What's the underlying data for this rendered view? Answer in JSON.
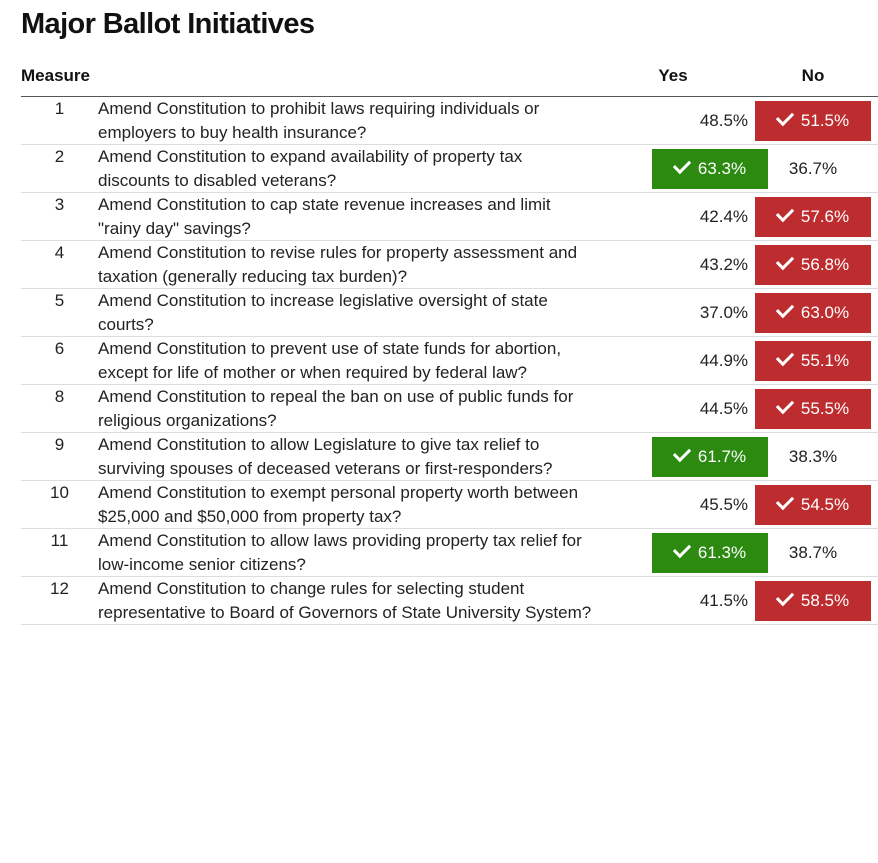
{
  "title": "Major Ballot Initiatives",
  "columns": {
    "measure": "Measure",
    "yes": "Yes",
    "no": "No"
  },
  "colors": {
    "yes_winner": "#2b8a0f",
    "no_winner": "#bd2c2f"
  },
  "rows": [
    {
      "number": "1",
      "description": "Amend Constitution to prohibit laws requiring individuals or employers to buy health insurance?",
      "yes": "48.5%",
      "no": "51.5%",
      "winner": "no"
    },
    {
      "number": "2",
      "description": "Amend Constitution to expand availability of property tax discounts to disabled veterans?",
      "yes": "63.3%",
      "no": "36.7%",
      "winner": "yes"
    },
    {
      "number": "3",
      "description": "Amend Constitution to cap state revenue increases and limit \"rainy day\" savings?",
      "yes": "42.4%",
      "no": "57.6%",
      "winner": "no"
    },
    {
      "number": "4",
      "description": "Amend Constitution to revise rules for property assessment and taxation (generally reducing tax burden)?",
      "yes": "43.2%",
      "no": "56.8%",
      "winner": "no"
    },
    {
      "number": "5",
      "description": "Amend Constitution to increase legislative oversight of state courts?",
      "yes": "37.0%",
      "no": "63.0%",
      "winner": "no"
    },
    {
      "number": "6",
      "description": "Amend Constitution to prevent use of state funds for abortion, except for life of mother or when required by federal law?",
      "yes": "44.9%",
      "no": "55.1%",
      "winner": "no"
    },
    {
      "number": "8",
      "description": "Amend Constitution to repeal the ban on use of public funds for religious organizations?",
      "yes": "44.5%",
      "no": "55.5%",
      "winner": "no"
    },
    {
      "number": "9",
      "description": "Amend Constitution to allow Legislature to give tax relief to surviving spouses of deceased veterans or first-responders?",
      "yes": "61.7%",
      "no": "38.3%",
      "winner": "yes"
    },
    {
      "number": "10",
      "description": "Amend Constitution to exempt personal property worth between $25,000 and $50,000 from property tax?",
      "yes": "45.5%",
      "no": "54.5%",
      "winner": "no"
    },
    {
      "number": "11",
      "description": "Amend Constitution to allow laws providing property tax relief for low-income senior citizens?",
      "yes": "61.3%",
      "no": "38.7%",
      "winner": "yes"
    },
    {
      "number": "12",
      "description": "Amend Constitution to change rules for selecting student representative to Board of Governors of State University System?",
      "yes": "41.5%",
      "no": "58.5%",
      "winner": "no"
    }
  ]
}
